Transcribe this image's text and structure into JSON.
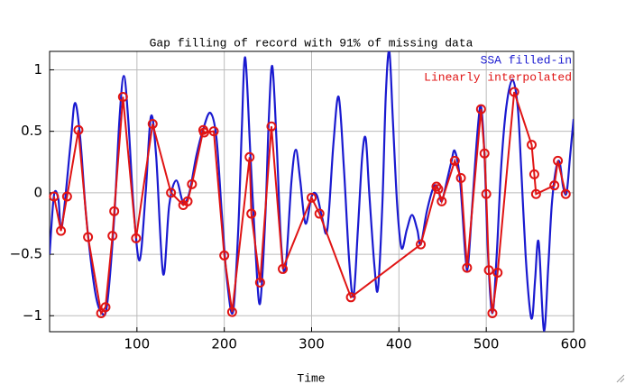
{
  "chart_data": {
    "type": "line",
    "title": "Gap filling of record with 91% of missing data",
    "x_label": "Time",
    "xlim": [
      0,
      600
    ],
    "xticks": [
      100,
      200,
      300,
      400,
      500,
      600
    ],
    "ylim": [
      -1.13,
      1.15
    ],
    "yticks": [
      {
        "value": -1,
        "label": "−1"
      },
      {
        "value": -0.5,
        "label": "−0.5"
      },
      0,
      0.5,
      1
    ],
    "grid": true,
    "legend": "top-right",
    "series": [
      {
        "name": "SSA filled-in",
        "color": "#1a1ad0",
        "markers": false,
        "x": [
          0,
          5,
          10,
          14,
          24,
          29,
          35,
          42,
          52,
          60,
          66,
          74,
          80,
          85,
          90,
          96,
          103,
          110,
          116,
          122,
          130,
          137,
          145,
          153,
          160,
          168,
          176,
          184,
          191,
          197,
          203,
          210,
          216,
          220,
          224,
          230,
          236,
          241,
          247,
          251,
          255,
          260,
          265,
          270,
          277,
          282,
          287,
          293,
          300,
          306,
          312,
          318,
          325,
          331,
          337,
          343,
          348,
          353,
          358,
          362,
          366,
          372,
          376,
          381,
          385,
          389,
          393,
          398,
          403,
          409,
          415,
          421,
          425,
          432,
          440,
          445,
          449,
          455,
          460,
          464,
          470,
          476,
          479,
          484,
          490,
          494,
          498,
          502,
          507,
          512,
          517,
          523,
          530,
          536,
          540,
          545,
          550,
          553,
          556,
          560,
          566,
          571,
          575,
          580,
          584,
          588,
          592,
          596,
          600
        ],
        "values": [
          -0.5,
          -0.02,
          -0.05,
          -0.28,
          0.4,
          0.73,
          0.45,
          -0.2,
          -0.8,
          -0.98,
          -0.9,
          -0.2,
          0.6,
          0.95,
          0.6,
          -0.1,
          -0.55,
          0.0,
          0.62,
          0.3,
          -0.66,
          -0.1,
          0.1,
          -0.08,
          0.0,
          0.3,
          0.52,
          0.65,
          0.45,
          -0.15,
          -0.7,
          -0.97,
          -0.3,
          0.5,
          1.1,
          0.3,
          -0.5,
          -0.9,
          -0.2,
          0.6,
          1.03,
          0.4,
          -0.4,
          -0.62,
          0.1,
          0.35,
          0.1,
          -0.25,
          -0.03,
          -0.02,
          -0.2,
          -0.3,
          0.4,
          0.78,
          0.2,
          -0.55,
          -0.84,
          -0.3,
          0.3,
          0.44,
          0.0,
          -0.6,
          -0.78,
          -0.1,
          0.8,
          1.15,
          0.6,
          -0.1,
          -0.45,
          -0.3,
          -0.18,
          -0.3,
          -0.42,
          -0.15,
          0.05,
          0.03,
          -0.07,
          0.1,
          0.25,
          0.34,
          0.1,
          -0.5,
          -0.6,
          -0.1,
          0.5,
          0.7,
          0.3,
          -0.5,
          -0.98,
          -0.5,
          0.2,
          0.7,
          0.92,
          0.7,
          0.2,
          -0.5,
          -0.95,
          -1.0,
          -0.7,
          -0.4,
          -1.12,
          -0.6,
          -0.1,
          0.2,
          0.25,
          0.05,
          0.0,
          0.3,
          0.6
        ]
      },
      {
        "name": "Linearly interpolated",
        "color": "#e01414",
        "markers": true,
        "x": [
          5,
          13,
          20,
          33,
          44,
          59,
          64,
          72,
          74,
          84,
          99,
          118,
          139,
          153,
          158,
          163,
          176,
          177,
          188,
          200,
          209,
          229,
          231,
          241,
          254,
          267,
          300,
          309,
          345,
          425,
          443,
          445,
          449,
          464,
          471,
          478,
          494,
          498,
          500,
          503,
          507,
          513,
          532,
          552,
          555,
          557,
          578,
          582,
          591
        ],
        "values": [
          -0.03,
          -0.31,
          -0.03,
          0.51,
          -0.36,
          -0.98,
          -0.93,
          -0.35,
          -0.15,
          0.78,
          -0.37,
          0.56,
          0.0,
          -0.1,
          -0.07,
          0.07,
          0.51,
          0.49,
          0.5,
          -0.51,
          -0.97,
          0.29,
          -0.17,
          -0.73,
          0.54,
          -0.62,
          -0.04,
          -0.17,
          -0.85,
          -0.42,
          0.05,
          0.03,
          -0.07,
          0.26,
          0.12,
          -0.61,
          0.68,
          0.32,
          -0.01,
          -0.63,
          -0.98,
          -0.65,
          0.82,
          0.39,
          0.15,
          -0.01,
          0.06,
          0.26,
          -0.01
        ]
      }
    ]
  }
}
